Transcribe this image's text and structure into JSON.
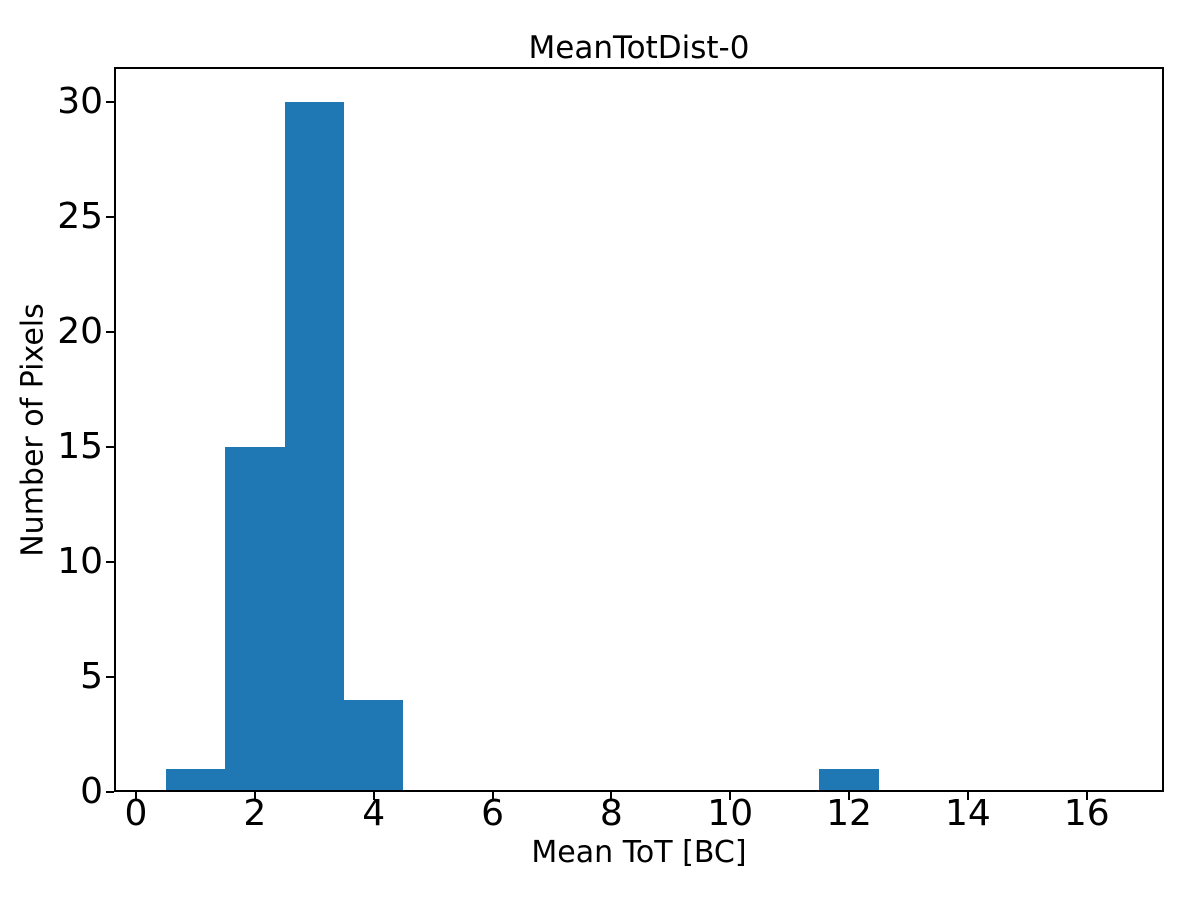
{
  "figure": {
    "title": "MeanTotDist-0",
    "xlabel": "Mean ToT [BC]",
    "ylabel": "Number of Pixels"
  },
  "chart_data": {
    "type": "bar",
    "subtype": "histogram",
    "title": "MeanTotDist-0",
    "xlabel": "Mean ToT [BC]",
    "ylabel": "Number of Pixels",
    "bars": [
      {
        "x0": 0.5,
        "x1": 1.5,
        "count": 1
      },
      {
        "x0": 1.5,
        "x1": 2.5,
        "count": 15
      },
      {
        "x0": 2.5,
        "x1": 3.5,
        "count": 30
      },
      {
        "x0": 3.5,
        "x1": 4.5,
        "count": 4
      },
      {
        "x0": 11.5,
        "x1": 12.5,
        "count": 1
      }
    ],
    "xticks": [
      0,
      2,
      4,
      6,
      8,
      10,
      12,
      14,
      16
    ],
    "yticks": [
      0,
      5,
      10,
      15,
      20,
      25,
      30
    ],
    "xlim": [
      -0.37,
      17.3
    ],
    "ylim": [
      0,
      31.5
    ],
    "bar_color": "#1f77b4",
    "axis_color": "#000000",
    "grid": false,
    "legend": null
  }
}
